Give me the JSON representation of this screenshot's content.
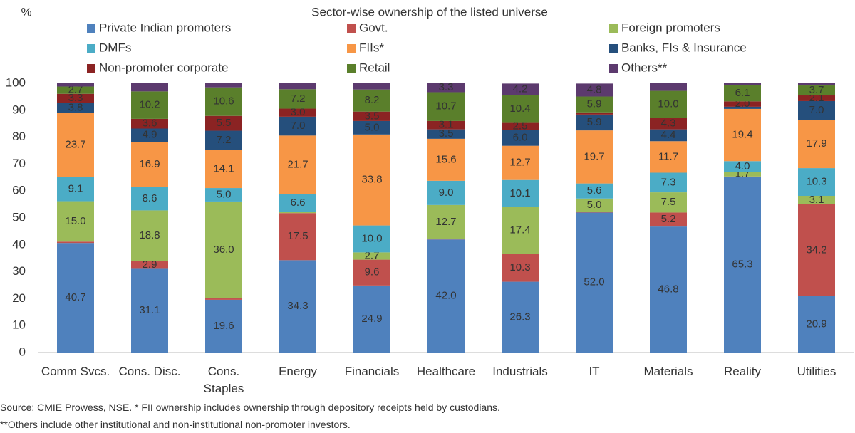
{
  "chart_data": {
    "type": "stacked-bar",
    "title": "Sector-wise ownership of the listed universe",
    "y_label": "%",
    "categories": [
      "Comm Svcs.",
      "Cons. Disc.",
      "Cons. Staples",
      "Energy",
      "Financials",
      "Healthcare",
      "Industrials",
      "IT",
      "Materials",
      "Reality",
      "Utilities"
    ],
    "series": [
      {
        "name": "Private Indian promoters",
        "color": "#4f81bd",
        "values": [
          40.7,
          31.1,
          19.6,
          34.3,
          24.9,
          42.0,
          26.3,
          52.0,
          46.8,
          65.3,
          20.9
        ],
        "value_labels": [
          "40.7",
          "31.1",
          "19.6",
          "34.3",
          "24.9",
          "42.0",
          "26.3",
          "52.0",
          "46.8",
          "65.3",
          "20.9"
        ]
      },
      {
        "name": "Govt.",
        "color": "#c0504d",
        "values": [
          0.5,
          2.9,
          0.5,
          17.5,
          9.6,
          0.1,
          10.3,
          0.2,
          5.2,
          0.1,
          34.2
        ],
        "value_labels": [
          null,
          "2.9",
          null,
          "17.5",
          "9.6",
          null,
          "10.3",
          null,
          "5.2",
          null,
          "34.2"
        ]
      },
      {
        "name": "Foreign promoters",
        "color": "#9bbb59",
        "values": [
          15.0,
          18.8,
          36.0,
          0.5,
          2.7,
          12.7,
          17.4,
          5.0,
          7.5,
          1.7,
          3.1
        ],
        "value_labels": [
          "15.0",
          "18.8",
          "36.0",
          null,
          "2.7",
          "12.7",
          "17.4",
          "5.0",
          "7.5",
          "1.7",
          "3.1"
        ]
      },
      {
        "name": "DMFs",
        "color": "#4bacc6",
        "values": [
          9.1,
          8.6,
          5.0,
          6.6,
          10.0,
          9.0,
          10.1,
          5.6,
          7.3,
          4.0,
          10.3
        ],
        "value_labels": [
          "9.1",
          "8.6",
          "5.0",
          "6.6",
          "10.0",
          "9.0",
          "10.1",
          "5.6",
          "7.3",
          "4.0",
          "10.3"
        ]
      },
      {
        "name": "FIIs*",
        "color": "#f79646",
        "values": [
          23.7,
          16.9,
          14.1,
          21.7,
          33.8,
          15.6,
          12.7,
          19.7,
          11.7,
          19.4,
          17.9
        ],
        "value_labels": [
          "23.7",
          "16.9",
          "14.1",
          "21.7",
          "33.8",
          "15.6",
          "12.7",
          "19.7",
          "11.7",
          "19.4",
          "17.9"
        ]
      },
      {
        "name": "Banks, FIs & Insurance",
        "color": "#254f7c",
        "values": [
          3.8,
          4.9,
          7.2,
          7.0,
          5.0,
          3.5,
          6.0,
          5.9,
          4.4,
          0.8,
          7.0
        ],
        "value_labels": [
          "3.8",
          "4.9",
          "7.2",
          "7.0",
          "5.0",
          "3.5",
          "6.0",
          "5.9",
          "4.4",
          null,
          "7.0"
        ]
      },
      {
        "name": "Non-promoter corporate",
        "color": "#8b2323",
        "values": [
          3.3,
          3.6,
          5.5,
          3.0,
          3.5,
          3.1,
          2.5,
          0.8,
          4.3,
          2.0,
          2.1
        ],
        "value_labels": [
          "3.3",
          "3.6",
          "5.5",
          "3.0",
          "3.5",
          "3.1",
          "2.5",
          null,
          "4.3",
          "2.0",
          "2.1"
        ]
      },
      {
        "name": "Retail",
        "color": "#5a7f2b",
        "values": [
          2.7,
          10.2,
          10.6,
          7.2,
          8.2,
          10.7,
          10.4,
          5.9,
          10.0,
          6.1,
          3.7
        ],
        "value_labels": [
          "2.7",
          "10.2",
          "10.6",
          "7.2",
          "8.2",
          "10.7",
          "10.4",
          "5.9",
          "10.0",
          "6.1",
          "3.7"
        ]
      },
      {
        "name": "Others**",
        "color": "#5c3a6e",
        "values": [
          1.2,
          3.0,
          1.5,
          2.2,
          2.3,
          3.3,
          4.2,
          4.8,
          2.8,
          0.6,
          0.8
        ],
        "value_labels": [
          null,
          null,
          null,
          null,
          null,
          "3.3",
          "4.2",
          "4.8",
          null,
          null,
          null
        ]
      }
    ],
    "ylim": [
      0,
      100
    ],
    "yticks": [
      0,
      10,
      20,
      30,
      40,
      50,
      60,
      70,
      80,
      90,
      100
    ],
    "grid": false
  },
  "source": "Source: CMIE Prowess, NSE.  * FII ownership includes ownership through depository receipts held by custodians.",
  "note": "**Others include other institutional and non-institutional non-promoter investors."
}
